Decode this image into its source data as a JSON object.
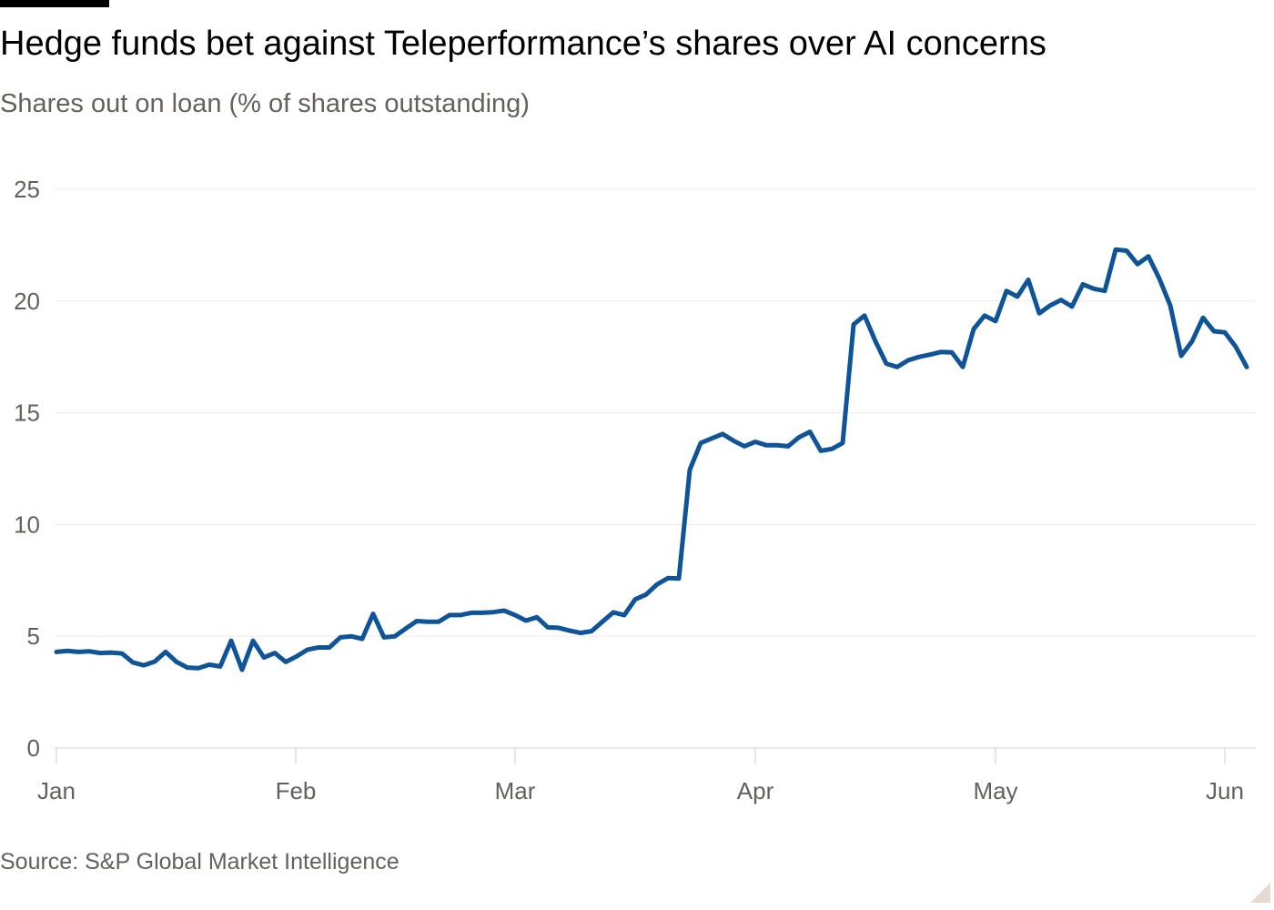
{
  "chart_data": {
    "type": "line",
    "title": "Hedge funds bet against Teleperformance’s shares over AI concerns",
    "subtitle": "Shares out on loan (% of shares outstanding)",
    "source": "Source: S&P Global Market Intelligence",
    "xlabel": "",
    "ylabel": "",
    "ylim": [
      0,
      25
    ],
    "yticks": [
      0,
      5,
      10,
      15,
      20,
      25
    ],
    "xticks": [
      "Jan",
      "Feb",
      "Mar",
      "Apr",
      "May",
      "Jun"
    ],
    "grid": "horizontal",
    "series_color": "#0f5499",
    "series": [
      {
        "values": [
          4.3,
          4.35,
          4.3,
          4.33,
          4.25,
          4.27,
          4.23,
          3.83,
          3.7,
          3.87,
          4.3,
          3.85,
          3.6,
          3.57,
          3.73,
          3.65,
          4.8,
          3.5,
          4.8,
          4.05,
          4.25,
          3.85,
          4.1,
          4.4,
          4.5,
          4.5,
          4.95,
          5.0,
          4.88,
          6.0,
          4.95,
          5.0,
          5.35,
          5.68,
          5.65,
          5.65,
          5.95,
          5.95,
          6.05,
          6.05,
          6.08,
          6.15,
          5.95,
          5.7,
          5.85,
          5.4,
          5.38,
          5.25,
          5.15,
          5.23,
          5.65,
          6.07,
          5.95,
          6.65,
          6.87,
          7.32,
          7.6,
          7.58,
          12.45,
          13.65,
          13.85,
          14.05,
          13.75,
          13.5,
          13.7,
          13.55,
          13.55,
          13.5,
          13.9,
          14.15,
          13.3,
          13.38,
          13.65,
          18.95,
          19.35,
          18.2,
          17.2,
          17.05,
          17.35,
          17.5,
          17.6,
          17.72,
          17.7,
          17.05,
          18.75,
          19.35,
          19.1,
          20.45,
          20.2,
          20.95,
          19.45,
          19.8,
          20.05,
          19.75,
          20.75,
          20.55,
          20.45,
          22.3,
          22.25,
          21.65,
          22.0,
          21.0,
          19.8,
          17.55,
          18.2,
          19.25,
          18.65,
          18.6,
          17.95,
          17.05
        ]
      }
    ]
  }
}
